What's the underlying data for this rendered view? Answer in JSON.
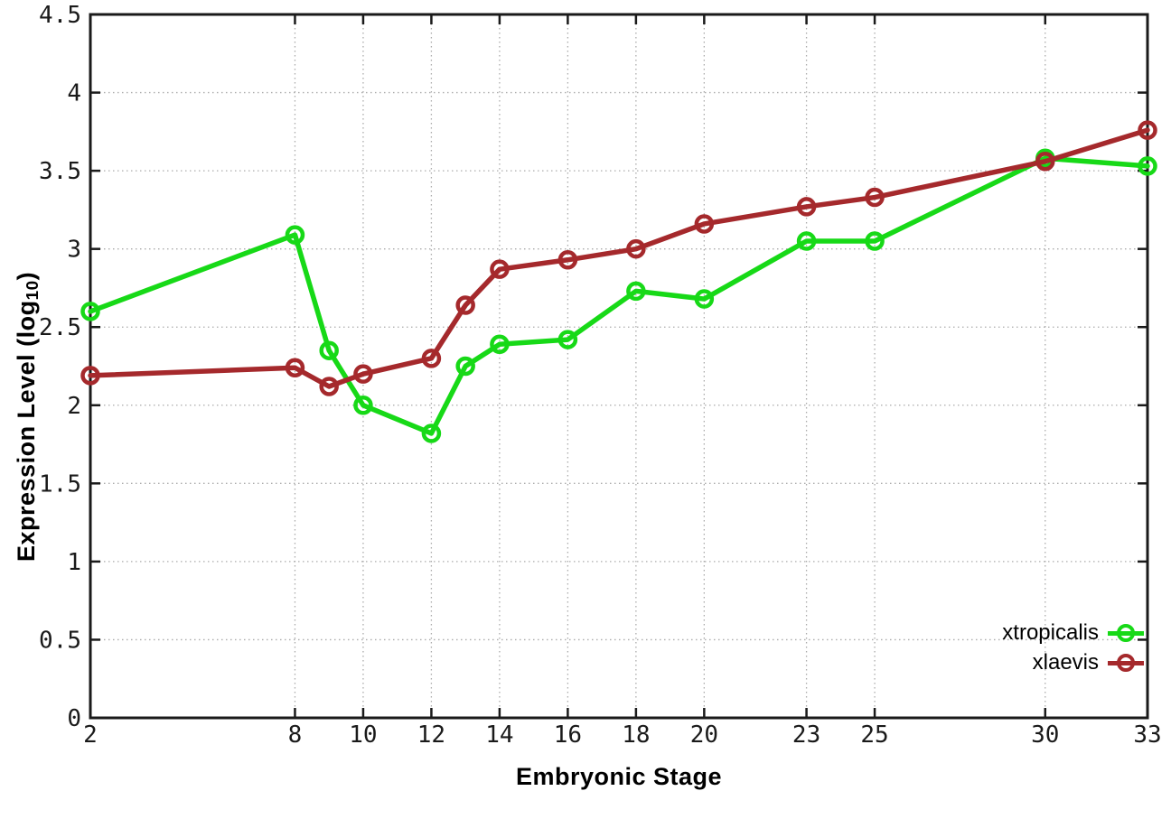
{
  "chart_data": {
    "type": "line",
    "xlabel": "Embryonic Stage",
    "ylabel": {
      "pre": "Expression Level (log",
      "sub": "10",
      "post": ")"
    },
    "x": [
      2,
      8,
      9,
      10,
      12,
      13,
      14,
      16,
      18,
      20,
      23,
      25,
      30,
      33
    ],
    "x_tick_labels": [
      "2",
      "8",
      "10",
      "12",
      "14",
      "16",
      "18",
      "20",
      "23",
      "25",
      "30",
      "33"
    ],
    "x_tick_values": [
      2,
      8,
      10,
      12,
      14,
      16,
      18,
      20,
      23,
      25,
      30,
      33
    ],
    "xlim": [
      2,
      33
    ],
    "ylim": [
      0,
      4.5
    ],
    "y_tick_step": 0.5,
    "grid": true,
    "legend_position": "bottom-right",
    "series": [
      {
        "name": "xtropicalis",
        "color": "#17d917",
        "values": [
          2.6,
          3.09,
          2.35,
          2.0,
          1.82,
          2.25,
          2.39,
          2.42,
          2.73,
          2.68,
          3.05,
          3.05,
          3.58,
          3.53
        ]
      },
      {
        "name": "xlaevis",
        "color": "#a5292c",
        "values": [
          2.19,
          2.24,
          2.12,
          2.2,
          2.3,
          2.64,
          2.87,
          2.93,
          3.0,
          3.16,
          3.27,
          3.33,
          3.56,
          3.76
        ]
      }
    ],
    "colors": {
      "grid": "#ababab",
      "axis": "#1a1a1a",
      "background": "#ffffff"
    }
  }
}
